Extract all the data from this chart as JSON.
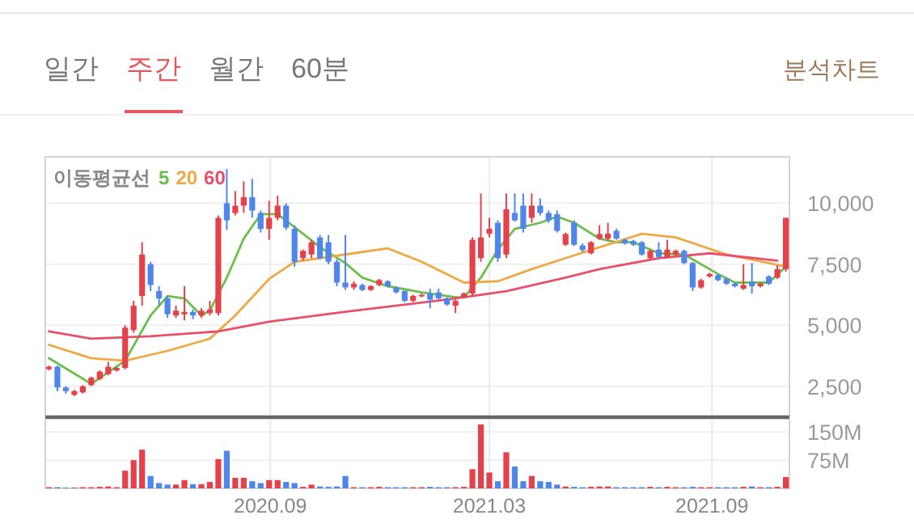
{
  "chart_data": [
    {
      "type": "other",
      "categories": [
        "일간",
        "주간",
        "월간",
        "60분"
      ],
      "colors": [
        "#777777",
        "#e8565e",
        "#777777",
        "#777777"
      ],
      "annotations": [
        "분석차트"
      ]
    },
    {
      "type": "candlestick",
      "legend_title": "이동평균선",
      "legend": "top left",
      "grid": true,
      "tick_labels": "y",
      "x": [
        "2020-03-02",
        "2020-03-09",
        "2020-03-16",
        "2020-03-23",
        "2020-03-30",
        "2020-04-06",
        "2020-04-13",
        "2020-04-20",
        "2020-04-27",
        "2020-05-04",
        "2020-05-11",
        "2020-05-18",
        "2020-05-25",
        "2020-06-01",
        "2020-06-08",
        "2020-06-15",
        "2020-06-22",
        "2020-06-29",
        "2020-07-06",
        "2020-07-13",
        "2020-07-20",
        "2020-07-27",
        "2020-08-03",
        "2020-08-10",
        "2020-08-17",
        "2020-08-24",
        "2020-08-31",
        "2020-09-07",
        "2020-09-14",
        "2020-09-21",
        "2020-09-28",
        "2020-10-05",
        "2020-10-12",
        "2020-10-19",
        "2020-10-26",
        "2020-11-02",
        "2020-11-09",
        "2020-11-16",
        "2020-11-23",
        "2020-11-30",
        "2020-12-07",
        "2020-12-14",
        "2020-12-21",
        "2020-12-28",
        "2021-01-04",
        "2021-01-11",
        "2021-01-18",
        "2021-01-25",
        "2021-02-01",
        "2021-02-08",
        "2021-02-15",
        "2021-02-22",
        "2021-03-01",
        "2021-03-08",
        "2021-03-15",
        "2021-03-22",
        "2021-03-29",
        "2021-04-05",
        "2021-04-12",
        "2021-04-19",
        "2021-04-26",
        "2021-05-03",
        "2021-05-10",
        "2021-05-17",
        "2021-05-24",
        "2021-05-31",
        "2021-06-07",
        "2021-06-14",
        "2021-06-21",
        "2021-06-28",
        "2021-07-05",
        "2021-07-12",
        "2021-07-19",
        "2021-07-26",
        "2021-08-02",
        "2021-08-09",
        "2021-08-16",
        "2021-08-23",
        "2021-08-30",
        "2021-09-06",
        "2021-09-13",
        "2021-09-20",
        "2021-09-27",
        "2021-10-04",
        "2021-10-11",
        "2021-10-18",
        "2021-10-25",
        "2021-11-01"
      ],
      "ohlc": [
        [
          3200,
          3350,
          3150,
          3300
        ],
        [
          3300,
          3350,
          2300,
          2450
        ],
        [
          2450,
          2500,
          2200,
          2300
        ],
        [
          2150,
          2350,
          2100,
          2300
        ],
        [
          2250,
          2550,
          2200,
          2500
        ],
        [
          2550,
          2900,
          2500,
          2850
        ],
        [
          2800,
          3150,
          2750,
          3100
        ],
        [
          3000,
          3500,
          2950,
          3300
        ],
        [
          3150,
          3300,
          3100,
          3250
        ],
        [
          3250,
          5000,
          3200,
          4900
        ],
        [
          4800,
          6000,
          4700,
          5800
        ],
        [
          6200,
          8400,
          5800,
          7900
        ],
        [
          7500,
          7600,
          6400,
          6650
        ],
        [
          6400,
          6600,
          5800,
          6100
        ],
        [
          6100,
          6200,
          5300,
          5450
        ],
        [
          5400,
          5800,
          5300,
          5600
        ],
        [
          5450,
          6600,
          5200,
          5550
        ],
        [
          5550,
          5650,
          5250,
          5400
        ],
        [
          5400,
          5700,
          5300,
          5600
        ],
        [
          5500,
          6000,
          5400,
          5650
        ],
        [
          5500,
          9500,
          5400,
          9400
        ],
        [
          10000,
          11400,
          8900,
          9300
        ],
        [
          9600,
          10500,
          9500,
          9900
        ],
        [
          9900,
          10900,
          9600,
          10250
        ],
        [
          10250,
          11000,
          9400,
          9700
        ],
        [
          9600,
          9700,
          8800,
          8950
        ],
        [
          8950,
          10100,
          8500,
          9400
        ],
        [
          9400,
          10300,
          9300,
          9900
        ],
        [
          9900,
          10000,
          8900,
          9000
        ],
        [
          8950,
          9100,
          7400,
          7600
        ],
        [
          7750,
          8100,
          7650,
          8050
        ],
        [
          7900,
          8500,
          7750,
          8400
        ],
        [
          8600,
          8700,
          7700,
          7750
        ],
        [
          8400,
          8700,
          7500,
          7600
        ],
        [
          7600,
          7700,
          6600,
          6750
        ],
        [
          6750,
          8700,
          6450,
          6550
        ],
        [
          6550,
          6800,
          6450,
          6700
        ],
        [
          6650,
          6700,
          6400,
          6450
        ],
        [
          6450,
          6650,
          6400,
          6600
        ],
        [
          6650,
          6900,
          6600,
          6850
        ],
        [
          6800,
          6850,
          6550,
          6600
        ],
        [
          6550,
          6600,
          6300,
          6350
        ],
        [
          6400,
          6450,
          5950,
          6000
        ],
        [
          6000,
          6250,
          5950,
          6200
        ],
        [
          6200,
          6300,
          6150,
          6250
        ],
        [
          6300,
          6500,
          5700,
          6050
        ],
        [
          6350,
          6500,
          6050,
          6100
        ],
        [
          6100,
          6150,
          5800,
          5850
        ],
        [
          5800,
          6050,
          5500,
          6000
        ],
        [
          6150,
          6350,
          6100,
          6300
        ],
        [
          6300,
          8600,
          6200,
          8500
        ],
        [
          7750,
          10400,
          7600,
          8600
        ],
        [
          8750,
          9400,
          8600,
          8950
        ],
        [
          9200,
          9300,
          7600,
          7750
        ],
        [
          7900,
          10400,
          7750,
          9750
        ],
        [
          9600,
          10400,
          9250,
          9300
        ],
        [
          9900,
          10400,
          8800,
          8950
        ],
        [
          9400,
          10400,
          9200,
          9900
        ],
        [
          9900,
          10200,
          9500,
          9600
        ],
        [
          9600,
          9700,
          9200,
          9300
        ],
        [
          9550,
          9700,
          8800,
          8870
        ],
        [
          8300,
          8800,
          8250,
          8740
        ],
        [
          9200,
          9300,
          8250,
          8300
        ],
        [
          8270,
          8350,
          8000,
          8080
        ],
        [
          7950,
          8450,
          7900,
          8400
        ],
        [
          8550,
          9100,
          8500,
          8740
        ],
        [
          8550,
          9200,
          8450,
          8750
        ],
        [
          8870,
          8950,
          8500,
          8550
        ],
        [
          8500,
          8550,
          8300,
          8350
        ],
        [
          8450,
          8500,
          8250,
          8300
        ],
        [
          8400,
          8450,
          7850,
          7900
        ],
        [
          7750,
          8100,
          7700,
          8050
        ],
        [
          8100,
          8400,
          7750,
          7800
        ],
        [
          7800,
          8500,
          7750,
          8100
        ],
        [
          7900,
          8100,
          7850,
          8050
        ],
        [
          8050,
          8100,
          7500,
          7550
        ],
        [
          7550,
          7600,
          6400,
          6550
        ],
        [
          6550,
          6900,
          6500,
          6850
        ],
        [
          7000,
          7150,
          6950,
          7100
        ],
        [
          7050,
          7100,
          6800,
          6850
        ],
        [
          6900,
          6950,
          6650,
          6700
        ],
        [
          6700,
          6750,
          6550,
          6600
        ],
        [
          6500,
          7500,
          6450,
          6650
        ],
        [
          6800,
          7550,
          6300,
          6600
        ],
        [
          6600,
          6750,
          6550,
          6700
        ],
        [
          7000,
          7050,
          6650,
          6700
        ],
        [
          6950,
          7450,
          6900,
          7300
        ],
        [
          7300,
          9400,
          7200,
          9400
        ]
      ],
      "colors": [
        "#e5414b",
        "#4f86ec",
        "#4f86ec",
        "#e5414b",
        "#e5414b",
        "#e5414b",
        "#e5414b",
        "#e5414b",
        "#e5414b",
        "#e5414b",
        "#e5414b",
        "#e5414b",
        "#4f86ec",
        "#4f86ec",
        "#4f86ec",
        "#e5414b",
        "#e5414b",
        "#4f86ec",
        "#e5414b",
        "#e5414b",
        "#e5414b",
        "#4f86ec",
        "#e5414b",
        "#e5414b",
        "#4f86ec",
        "#4f86ec",
        "#e5414b",
        "#e5414b",
        "#4f86ec",
        "#4f86ec",
        "#e5414b",
        "#e5414b",
        "#4f86ec",
        "#4f86ec",
        "#4f86ec",
        "#4f86ec",
        "#e5414b",
        "#4f86ec",
        "#e5414b",
        "#e5414b",
        "#4f86ec",
        "#4f86ec",
        "#4f86ec",
        "#e5414b",
        "#e5414b",
        "#4f86ec",
        "#4f86ec",
        "#4f86ec",
        "#e5414b",
        "#e5414b",
        "#e5414b",
        "#e5414b",
        "#e5414b",
        "#4f86ec",
        "#e5414b",
        "#4f86ec",
        "#4f86ec",
        "#e5414b",
        "#4f86ec",
        "#4f86ec",
        "#4f86ec",
        "#e5414b",
        "#4f86ec",
        "#4f86ec",
        "#e5414b",
        "#e5414b",
        "#e5414b",
        "#4f86ec",
        "#4f86ec",
        "#4f86ec",
        "#4f86ec",
        "#e5414b",
        "#4f86ec",
        "#e5414b",
        "#e5414b",
        "#4f86ec",
        "#4f86ec",
        "#e5414b",
        "#e5414b",
        "#4f86ec",
        "#4f86ec",
        "#4f86ec",
        "#e5414b",
        "#4f86ec",
        "#e5414b",
        "#4f86ec",
        "#e5414b",
        "#e5414b"
      ],
      "series": [
        {
          "name": "5",
          "type": "line",
          "color": "#6cbf4a",
          "x": [
            "2020-03-02",
            "2020-04-06",
            "2020-05-04",
            "2020-05-25",
            "2020-06-08",
            "2020-06-22",
            "2020-07-06",
            "2020-07-13",
            "2020-07-27",
            "2020-08-10",
            "2020-08-24",
            "2020-09-07",
            "2020-09-28",
            "2020-10-12",
            "2020-11-02",
            "2020-11-16",
            "2020-12-07",
            "2021-01-04",
            "2021-02-01",
            "2021-02-08",
            "2021-02-22",
            "2021-03-08",
            "2021-03-22",
            "2021-04-12",
            "2021-04-26",
            "2021-05-10",
            "2021-05-31",
            "2021-06-14",
            "2021-06-28",
            "2021-07-19",
            "2021-08-09",
            "2021-09-06",
            "2021-09-20",
            "2021-10-18",
            "2021-11-01"
          ],
          "values": [
            3650,
            2600,
            3550,
            5400,
            6200,
            6100,
            5400,
            5600,
            6950,
            8550,
            9550,
            9550,
            8750,
            8200,
            7550,
            6950,
            6600,
            6350,
            6150,
            6150,
            6950,
            8100,
            8950,
            9200,
            9450,
            9200,
            8550,
            8400,
            8400,
            7950,
            7900,
            7100,
            6750,
            6750,
            7400
          ]
        },
        {
          "name": "20",
          "type": "line",
          "color": "#f0a842",
          "x": [
            "2020-03-02",
            "2020-04-06",
            "2020-05-04",
            "2020-06-08",
            "2020-07-13",
            "2020-08-03",
            "2020-08-31",
            "2020-09-21",
            "2020-11-02",
            "2020-12-07",
            "2021-01-04",
            "2021-02-08",
            "2021-03-08",
            "2021-04-05",
            "2021-05-03",
            "2021-07-05",
            "2021-08-02",
            "2021-09-13",
            "2021-10-18",
            "2021-11-01"
          ],
          "values": [
            4200,
            3650,
            3550,
            3950,
            4450,
            5400,
            6900,
            7600,
            7900,
            8150,
            7600,
            6750,
            6800,
            7300,
            7750,
            8750,
            8600,
            7900,
            7550,
            7400
          ]
        },
        {
          "name": "60",
          "type": "line",
          "color": "#e8506a",
          "x": [
            "2020-03-02",
            "2020-04-06",
            "2020-05-25",
            "2020-07-20",
            "2020-08-31",
            "2020-11-02",
            "2021-02-01",
            "2021-03-15",
            "2021-05-03",
            "2021-05-31",
            "2021-07-19",
            "2021-08-30",
            "2021-10-25"
          ],
          "values": [
            4750,
            4450,
            4550,
            4750,
            5150,
            5550,
            6100,
            6400,
            6950,
            7300,
            7750,
            7950,
            7650
          ]
        }
      ],
      "xlim": [
        "2020-02-28",
        "2021-11-04"
      ],
      "ylim": [
        1300,
        11900
      ],
      "xticks": [
        {
          "value": "2020-09-01",
          "label": null
        },
        {
          "value": "2021-03-01",
          "label": null
        },
        {
          "value": "2021-09-01",
          "label": null
        }
      ],
      "yticks": [
        {
          "value": 2500,
          "label": "2,500"
        },
        {
          "value": 5000,
          "label": "5,000"
        },
        {
          "value": 7500,
          "label": "7,500"
        },
        {
          "value": 10000,
          "label": "10,000"
        }
      ]
    },
    {
      "type": "bar",
      "grid": true,
      "x": [
        "2020-03-02",
        "2020-03-09",
        "2020-03-16",
        "2020-03-23",
        "2020-03-30",
        "2020-04-06",
        "2020-04-13",
        "2020-04-20",
        "2020-04-27",
        "2020-05-04",
        "2020-05-11",
        "2020-05-18",
        "2020-05-25",
        "2020-06-01",
        "2020-06-08",
        "2020-06-15",
        "2020-06-22",
        "2020-06-29",
        "2020-07-06",
        "2020-07-13",
        "2020-07-20",
        "2020-07-27",
        "2020-08-03",
        "2020-08-10",
        "2020-08-17",
        "2020-08-24",
        "2020-08-31",
        "2020-09-07",
        "2020-09-14",
        "2020-09-21",
        "2020-09-28",
        "2020-10-05",
        "2020-10-12",
        "2020-10-19",
        "2020-10-26",
        "2020-11-02",
        "2020-11-09",
        "2020-11-16",
        "2020-11-23",
        "2020-11-30",
        "2020-12-07",
        "2020-12-14",
        "2020-12-21",
        "2020-12-28",
        "2021-01-04",
        "2021-01-11",
        "2021-01-18",
        "2021-01-25",
        "2021-02-01",
        "2021-02-08",
        "2021-02-15",
        "2021-02-22",
        "2021-03-01",
        "2021-03-08",
        "2021-03-15",
        "2021-03-22",
        "2021-03-29",
        "2021-04-05",
        "2021-04-12",
        "2021-04-19",
        "2021-04-26",
        "2021-05-03",
        "2021-05-10",
        "2021-05-17",
        "2021-05-24",
        "2021-05-31",
        "2021-06-07",
        "2021-06-14",
        "2021-06-21",
        "2021-06-28",
        "2021-07-05",
        "2021-07-12",
        "2021-07-19",
        "2021-07-26",
        "2021-08-02",
        "2021-08-09",
        "2021-08-16",
        "2021-08-23",
        "2021-08-30",
        "2021-09-06",
        "2021-09-13",
        "2021-09-20",
        "2021-09-27",
        "2021-10-04",
        "2021-10-11",
        "2021-10-18",
        "2021-10-25",
        "2021-11-01"
      ],
      "values": [
        3000000,
        3000000,
        2000000,
        2000000,
        3000000,
        3000000,
        4000000,
        5000000,
        3000000,
        47000000,
        75000000,
        103000000,
        33000000,
        14000000,
        10000000,
        10000000,
        22000000,
        11000000,
        11000000,
        17000000,
        78000000,
        100000000,
        28000000,
        28000000,
        19000000,
        14000000,
        22000000,
        22000000,
        17000000,
        14000000,
        4000000,
        10000000,
        5000000,
        4000000,
        5000000,
        33000000,
        3000000,
        3000000,
        3000000,
        4000000,
        3000000,
        3000000,
        3000000,
        3000000,
        3000000,
        4000000,
        3000000,
        3000000,
        3000000,
        4000000,
        51000000,
        170000000,
        42000000,
        19000000,
        96000000,
        58000000,
        19000000,
        33000000,
        19000000,
        17000000,
        10000000,
        5000000,
        4000000,
        3000000,
        4000000,
        5000000,
        5000000,
        3000000,
        3000000,
        3000000,
        3000000,
        4000000,
        3000000,
        4000000,
        3000000,
        3000000,
        4000000,
        3000000,
        3000000,
        3000000,
        3000000,
        3000000,
        4000000,
        5000000,
        3000000,
        3000000,
        4000000,
        30000000
      ],
      "colors": [
        "#e5414b",
        "#4f86ec",
        "#4f86ec",
        "#e5414b",
        "#e5414b",
        "#e5414b",
        "#e5414b",
        "#e5414b",
        "#e5414b",
        "#e5414b",
        "#e5414b",
        "#e5414b",
        "#4f86ec",
        "#4f86ec",
        "#4f86ec",
        "#e5414b",
        "#e5414b",
        "#4f86ec",
        "#e5414b",
        "#e5414b",
        "#e5414b",
        "#4f86ec",
        "#e5414b",
        "#e5414b",
        "#4f86ec",
        "#4f86ec",
        "#e5414b",
        "#e5414b",
        "#4f86ec",
        "#4f86ec",
        "#e5414b",
        "#e5414b",
        "#4f86ec",
        "#4f86ec",
        "#4f86ec",
        "#4f86ec",
        "#e5414b",
        "#4f86ec",
        "#e5414b",
        "#e5414b",
        "#4f86ec",
        "#4f86ec",
        "#4f86ec",
        "#e5414b",
        "#e5414b",
        "#4f86ec",
        "#4f86ec",
        "#4f86ec",
        "#e5414b",
        "#e5414b",
        "#e5414b",
        "#e5414b",
        "#e5414b",
        "#4f86ec",
        "#e5414b",
        "#4f86ec",
        "#4f86ec",
        "#e5414b",
        "#4f86ec",
        "#4f86ec",
        "#4f86ec",
        "#e5414b",
        "#4f86ec",
        "#4f86ec",
        "#e5414b",
        "#e5414b",
        "#e5414b",
        "#4f86ec",
        "#4f86ec",
        "#4f86ec",
        "#4f86ec",
        "#e5414b",
        "#4f86ec",
        "#e5414b",
        "#e5414b",
        "#4f86ec",
        "#4f86ec",
        "#e5414b",
        "#e5414b",
        "#4f86ec",
        "#4f86ec",
        "#4f86ec",
        "#e5414b",
        "#4f86ec",
        "#e5414b",
        "#4f86ec",
        "#e5414b",
        "#e5414b"
      ],
      "xlim": [
        "2020-02-28",
        "2021-11-04"
      ],
      "ylim": [
        0,
        185000000
      ],
      "xticks": [
        {
          "value": "2020-09-01",
          "label": "2020.09"
        },
        {
          "value": "2021-03-01",
          "label": "2021.03"
        },
        {
          "value": "2021-09-01",
          "label": "2021.09"
        }
      ],
      "yticks": [
        {
          "value": 75000000,
          "label": "75M"
        },
        {
          "value": 150000000,
          "label": "150M"
        }
      ]
    }
  ]
}
